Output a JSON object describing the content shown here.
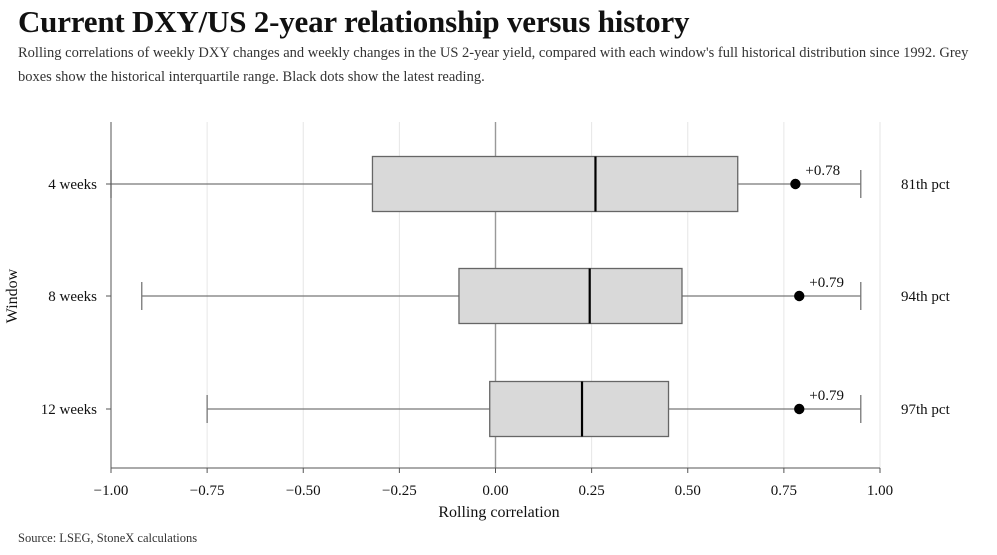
{
  "title": "Current DXY/US 2-year relationship versus history",
  "subtitle": "Rolling correlations of weekly DXY changes and weekly changes in the US 2-year yield, compared with each window's full historical distribution since 1992. Grey boxes show the historical interquartile range. Black dots show the latest reading.",
  "source": "Source: LSEG, StoneX calculations",
  "colors": {
    "box_fill": "#d9d9d9",
    "box_stroke": "#666666",
    "whisker": "#777777",
    "median": "#000000",
    "dot": "#000000",
    "grid": "#e6e6e6",
    "zero_line": "#999999"
  },
  "chart_data": {
    "type": "boxplot",
    "orientation": "horizontal",
    "xlabel": "Rolling correlation",
    "ylabel": "Window",
    "xlim": [
      -1.0,
      1.0
    ],
    "xticks": [
      -1.0,
      -0.75,
      -0.5,
      -0.25,
      0.0,
      0.25,
      0.5,
      0.75,
      1.0
    ],
    "xtick_labels": [
      "−1.00",
      "−0.75",
      "−0.50",
      "−0.25",
      "0.00",
      "0.25",
      "0.50",
      "0.75",
      "1.00"
    ],
    "grid": "vertical",
    "reference_line": 0.0,
    "categories": [
      "4 weeks",
      "8 weeks",
      "12 weeks"
    ],
    "boxes": [
      {
        "window": "4 weeks",
        "whisker_low": -1.0,
        "q1": -0.32,
        "median": 0.26,
        "q3": 0.63,
        "whisker_high": 0.95,
        "latest": 0.78,
        "latest_label": "+0.78",
        "percentile_label": "81th pct"
      },
      {
        "window": "8 weeks",
        "whisker_low": -0.92,
        "q1": -0.095,
        "median": 0.245,
        "q3": 0.485,
        "whisker_high": 0.95,
        "latest": 0.79,
        "latest_label": "+0.79",
        "percentile_label": "94th pct"
      },
      {
        "window": "12 weeks",
        "whisker_low": -0.75,
        "q1": -0.015,
        "median": 0.225,
        "q3": 0.45,
        "whisker_high": 0.95,
        "latest": 0.79,
        "latest_label": "+0.79",
        "percentile_label": "97th pct"
      }
    ]
  }
}
